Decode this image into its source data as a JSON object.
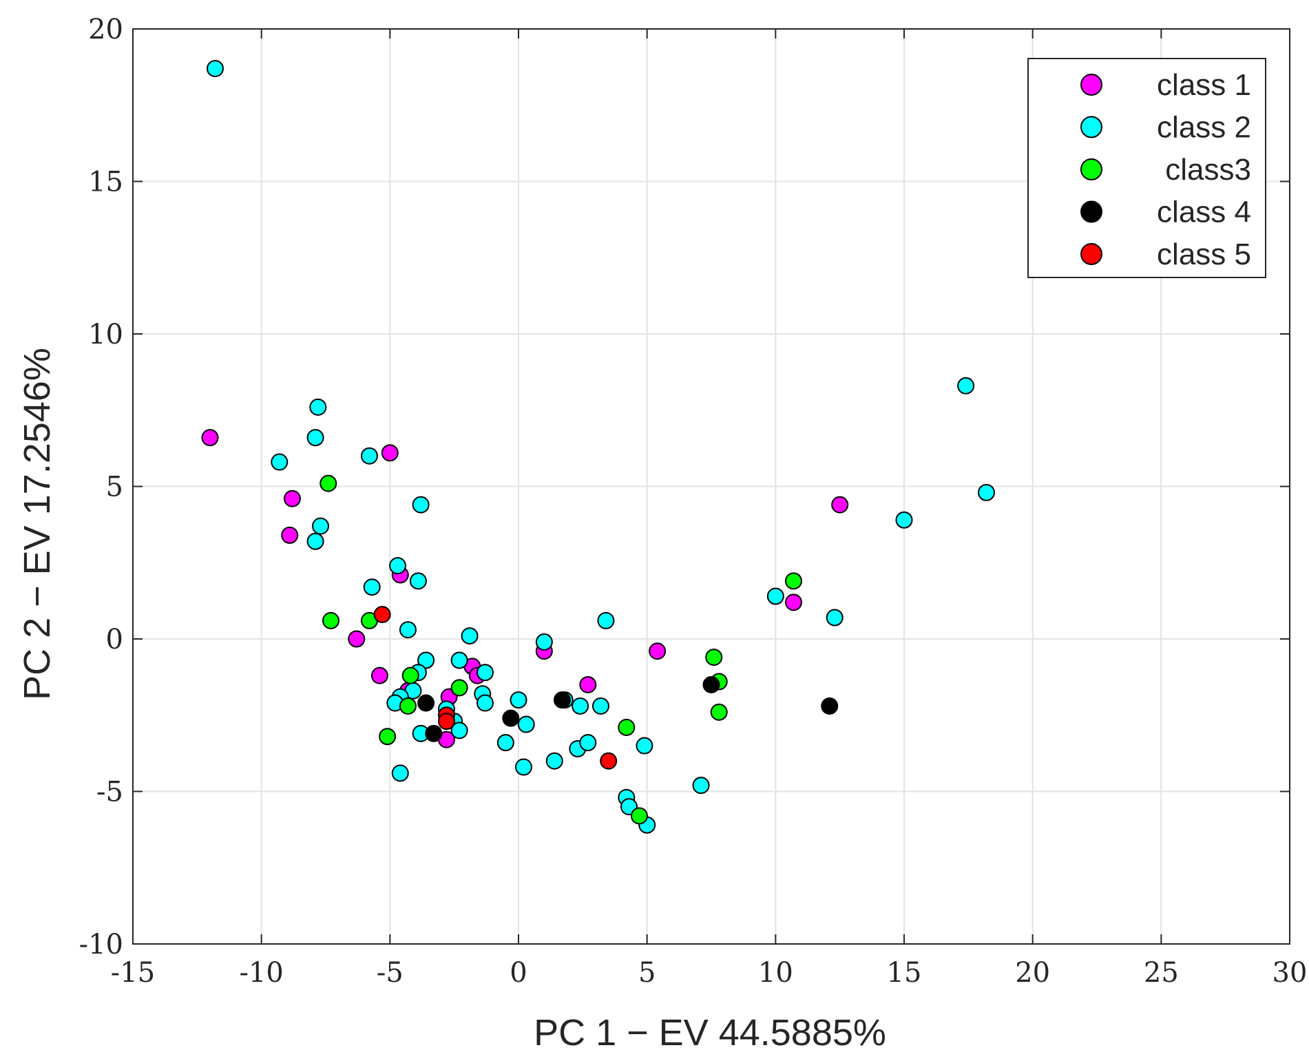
{
  "chart_data": {
    "type": "scatter",
    "title": "",
    "xlabel": "PC 1 − EV 44.5885%",
    "ylabel": "PC 2 − EV 17.2546%",
    "xlim": [
      -15,
      30
    ],
    "ylim": [
      -10,
      20
    ],
    "xticks": [
      "-15",
      "-10",
      "-5",
      "0",
      "5",
      "10",
      "15",
      "20",
      "25",
      "30"
    ],
    "yticks": [
      "-10",
      "-5",
      "0",
      "5",
      "10",
      "15",
      "20"
    ],
    "grid": true,
    "legend_position": "top-right",
    "series": [
      {
        "name": "class 1",
        "color": "#ff00ff",
        "points": [
          [
            -12.0,
            6.6
          ],
          [
            -8.8,
            4.6
          ],
          [
            -8.9,
            3.4
          ],
          [
            -5.0,
            6.1
          ],
          [
            -4.6,
            2.1
          ],
          [
            -6.3,
            0.0
          ],
          [
            -5.4,
            -1.2
          ],
          [
            -4.3,
            -1.7
          ],
          [
            -2.7,
            -1.9
          ],
          [
            -1.8,
            -0.9
          ],
          [
            -1.6,
            -1.2
          ],
          [
            -2.8,
            -3.3
          ],
          [
            1.0,
            -0.4
          ],
          [
            2.7,
            -1.5
          ],
          [
            5.4,
            -0.4
          ],
          [
            10.7,
            1.2
          ],
          [
            12.5,
            4.4
          ]
        ]
      },
      {
        "name": "class 2",
        "color": "#00ffff",
        "points": [
          [
            -11.8,
            18.7
          ],
          [
            -7.8,
            7.6
          ],
          [
            -7.9,
            6.6
          ],
          [
            -9.3,
            5.8
          ],
          [
            -5.8,
            6.0
          ],
          [
            -7.7,
            3.7
          ],
          [
            -7.9,
            3.2
          ],
          [
            -3.8,
            4.4
          ],
          [
            -4.7,
            2.4
          ],
          [
            -5.7,
            1.7
          ],
          [
            -3.9,
            1.9
          ],
          [
            -4.3,
            0.3
          ],
          [
            -3.6,
            -0.7
          ],
          [
            -3.9,
            -1.1
          ],
          [
            -4.1,
            -1.7
          ],
          [
            -4.6,
            -1.9
          ],
          [
            -4.8,
            -2.1
          ],
          [
            -3.8,
            -3.1
          ],
          [
            -2.8,
            -2.3
          ],
          [
            -2.5,
            -2.7
          ],
          [
            -2.3,
            -3.0
          ],
          [
            -2.3,
            -0.7
          ],
          [
            -1.9,
            0.1
          ],
          [
            -1.3,
            -1.1
          ],
          [
            -1.4,
            -1.8
          ],
          [
            -1.3,
            -2.1
          ],
          [
            -0.5,
            -3.4
          ],
          [
            0.0,
            -2.0
          ],
          [
            0.3,
            -2.8
          ],
          [
            0.2,
            -4.2
          ],
          [
            1.0,
            -0.1
          ],
          [
            1.8,
            -2.0
          ],
          [
            2.4,
            -2.2
          ],
          [
            2.3,
            -3.6
          ],
          [
            2.7,
            -3.4
          ],
          [
            1.4,
            -4.0
          ],
          [
            3.2,
            -2.2
          ],
          [
            3.4,
            0.6
          ],
          [
            4.2,
            -5.2
          ],
          [
            4.3,
            -5.5
          ],
          [
            4.9,
            -3.5
          ],
          [
            5.0,
            -6.1
          ],
          [
            7.1,
            -4.8
          ],
          [
            10.0,
            1.4
          ],
          [
            12.3,
            0.7
          ],
          [
            15.0,
            3.9
          ],
          [
            17.4,
            8.3
          ],
          [
            18.2,
            4.8
          ],
          [
            -4.6,
            -4.4
          ]
        ]
      },
      {
        "name": "class3",
        "color": "#00ff00",
        "points": [
          [
            -7.4,
            5.1
          ],
          [
            -7.3,
            0.6
          ],
          [
            -5.8,
            0.6
          ],
          [
            -4.2,
            -1.2
          ],
          [
            -4.3,
            -2.2
          ],
          [
            -5.1,
            -3.2
          ],
          [
            -2.3,
            -1.6
          ],
          [
            4.2,
            -2.9
          ],
          [
            4.7,
            -5.8
          ],
          [
            7.6,
            -0.6
          ],
          [
            7.8,
            -1.4
          ],
          [
            7.8,
            -2.4
          ],
          [
            10.7,
            1.9
          ]
        ]
      },
      {
        "name": "class 4",
        "color": "#000000",
        "points": [
          [
            -3.6,
            -2.1
          ],
          [
            -3.3,
            -3.1
          ],
          [
            -0.3,
            -2.6
          ],
          [
            1.7,
            -2.0
          ],
          [
            7.5,
            -1.5
          ],
          [
            12.1,
            -2.2
          ]
        ]
      },
      {
        "name": "class 5",
        "color": "#ff0000",
        "points": [
          [
            -5.3,
            0.8
          ],
          [
            -2.8,
            -2.5
          ],
          [
            -2.8,
            -2.7
          ],
          [
            3.5,
            -4.0
          ]
        ]
      }
    ]
  }
}
